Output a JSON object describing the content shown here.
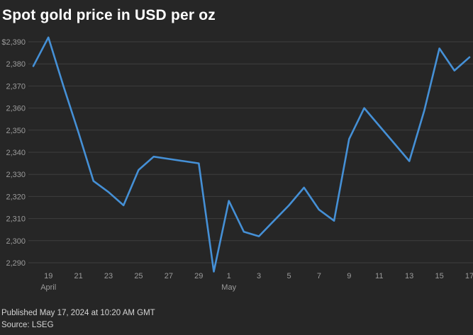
{
  "page": {
    "title": "Spot gold price in USD per oz",
    "footer": {
      "published": "Published May 17, 2024 at 10:20 AM GMT",
      "source": "Source: LSEG"
    }
  },
  "colors": {
    "background": "#262626",
    "line": "#4590d6",
    "grid": "#3e3e3e",
    "axis_text": "#9b9b9b",
    "title_text": "#ffffff",
    "footer_text": "#d4d4d4"
  },
  "chart_data": {
    "type": "line",
    "title": "Spot gold price in USD per oz",
    "ylabel": "USD per oz",
    "xlabel": "",
    "grid": "horizontal",
    "legend": "none",
    "ylim": [
      2283,
      2394
    ],
    "x": [
      "Apr 18",
      "Apr 19",
      "Apr 20",
      "Apr 21",
      "Apr 22",
      "Apr 23",
      "Apr 24",
      "Apr 25",
      "Apr 26",
      "Apr 27",
      "Apr 28",
      "Apr 29",
      "Apr 30",
      "May 1",
      "May 2",
      "May 3",
      "May 4",
      "May 5",
      "May 6",
      "May 7",
      "May 8",
      "May 9",
      "May 10",
      "May 11",
      "May 12",
      "May 13",
      "May 14",
      "May 15",
      "May 16",
      "May 17"
    ],
    "values": [
      2379,
      2392,
      2370,
      2349,
      2327,
      2322,
      2316,
      2332,
      2338,
      2337,
      2336,
      2335,
      2286,
      2318,
      2304,
      2302,
      2309,
      2316,
      2324,
      2314,
      2309,
      2346,
      2360,
      2352,
      2344,
      2336,
      2359,
      2387,
      2377,
      2383
    ],
    "y_ticks": [
      {
        "value": 2390,
        "label": "$2,390"
      },
      {
        "value": 2380,
        "label": "2,380"
      },
      {
        "value": 2370,
        "label": "2,370"
      },
      {
        "value": 2360,
        "label": "2,360"
      },
      {
        "value": 2350,
        "label": "2,350"
      },
      {
        "value": 2340,
        "label": "2,340"
      },
      {
        "value": 2330,
        "label": "2,330"
      },
      {
        "value": 2320,
        "label": "2,320"
      },
      {
        "value": 2310,
        "label": "2,310"
      },
      {
        "value": 2300,
        "label": "2,300"
      },
      {
        "value": 2290,
        "label": "2,290"
      }
    ],
    "x_ticks": [
      {
        "index": 1,
        "label": "19",
        "month": "April"
      },
      {
        "index": 3,
        "label": "21",
        "month": ""
      },
      {
        "index": 5,
        "label": "23",
        "month": ""
      },
      {
        "index": 7,
        "label": "25",
        "month": ""
      },
      {
        "index": 9,
        "label": "27",
        "month": ""
      },
      {
        "index": 11,
        "label": "29",
        "month": ""
      },
      {
        "index": 13,
        "label": "1",
        "month": "May"
      },
      {
        "index": 15,
        "label": "3",
        "month": ""
      },
      {
        "index": 17,
        "label": "5",
        "month": ""
      },
      {
        "index": 19,
        "label": "7",
        "month": ""
      },
      {
        "index": 21,
        "label": "9",
        "month": ""
      },
      {
        "index": 23,
        "label": "11",
        "month": ""
      },
      {
        "index": 25,
        "label": "13",
        "month": ""
      },
      {
        "index": 27,
        "label": "15",
        "month": ""
      },
      {
        "index": 29,
        "label": "17",
        "month": ""
      }
    ]
  }
}
